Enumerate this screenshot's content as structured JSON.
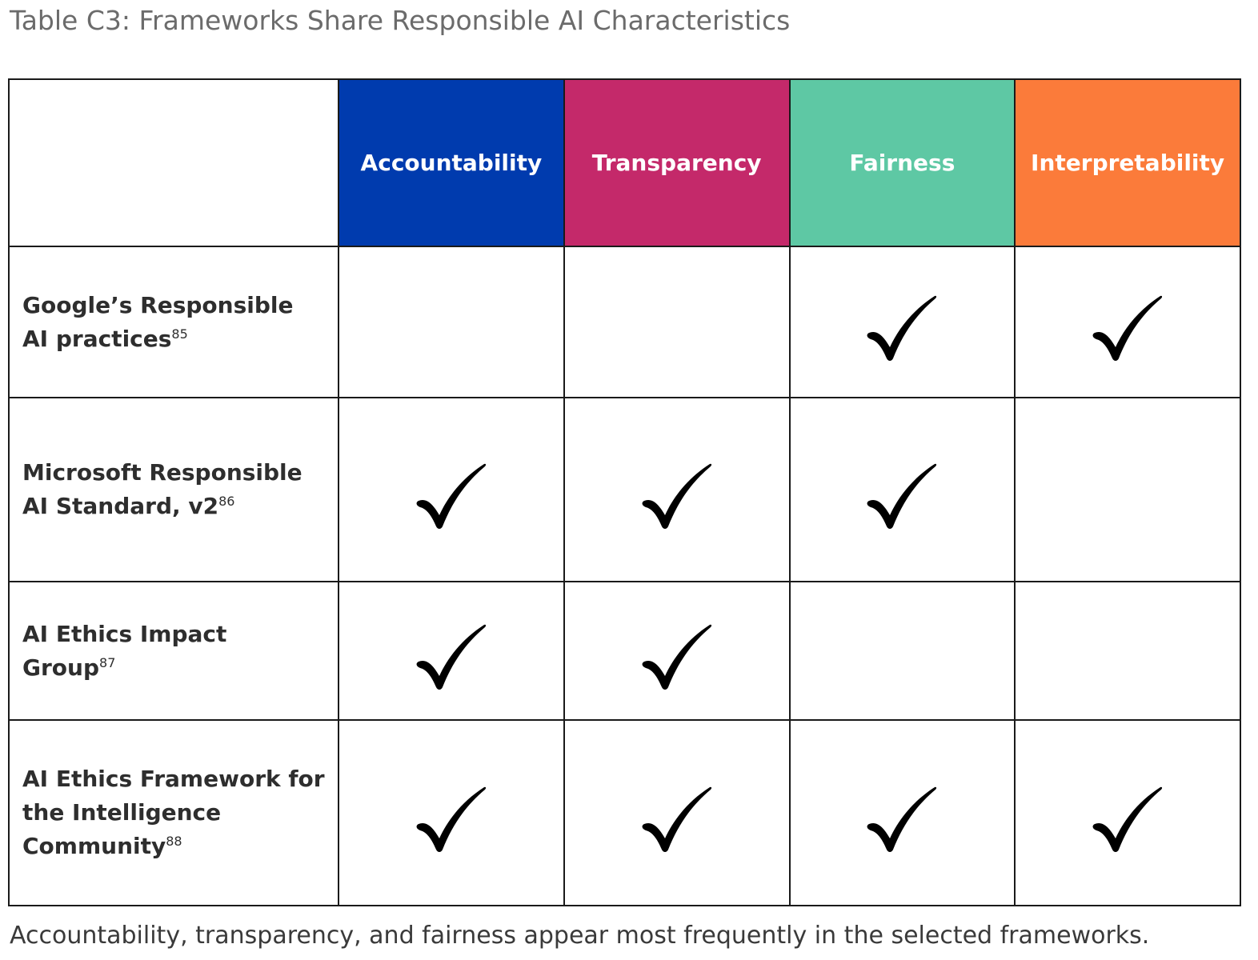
{
  "title": "Table C3: Frameworks Share Responsible AI Characteristics",
  "columns": [
    {
      "label": "Accountability",
      "color": "#003BAE",
      "icon": "none"
    },
    {
      "label": "Transparency",
      "color": "#C4296A",
      "icon": "none"
    },
    {
      "label": "Fairness",
      "color": "#5EC8A4",
      "icon": "none"
    },
    {
      "label": "Interpretability",
      "color": "#FB7B3A",
      "icon": "none"
    }
  ],
  "rows": [
    {
      "name": "Google’s Responsible AI practices",
      "note": "85",
      "checks": [
        false,
        false,
        true,
        true
      ]
    },
    {
      "name": "Microsoft Responsible AI Standard, v2",
      "note": "86",
      "checks": [
        true,
        true,
        true,
        false
      ]
    },
    {
      "name": "AI Ethics Impact Group",
      "note": "87",
      "checks": [
        true,
        true,
        false,
        false
      ]
    },
    {
      "name": "AI Ethics Framework for the Intelligence Community",
      "note": "88",
      "checks": [
        true,
        true,
        true,
        true
      ]
    }
  ],
  "check_icon": "checkmark-icon",
  "footnote": "Accountability, transparency, and fairness appear most frequently in the selected frameworks."
}
